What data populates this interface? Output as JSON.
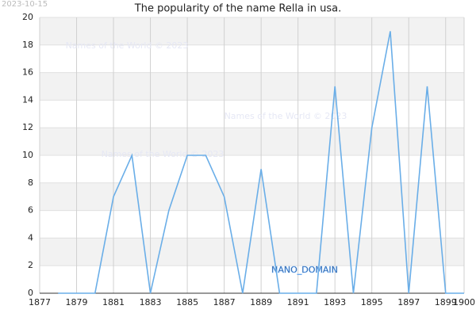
{
  "chart_data": {
    "type": "line",
    "title": "The popularity of the name Rella in usa.",
    "date": "2023-10-15",
    "annotations": [
      "Names of the World © 2023",
      "Names of the World © 2023",
      "Names of the World © 2023",
      "NANO_DOMAIN"
    ],
    "x": [
      1878,
      1879,
      1880,
      1881,
      1882,
      1883,
      1884,
      1885,
      1886,
      1887,
      1888,
      1889,
      1890,
      1891,
      1892,
      1893,
      1894,
      1895,
      1896,
      1897,
      1898,
      1899,
      1900
    ],
    "series": [
      {
        "name": "Rella",
        "color": "#6aaee8",
        "values": [
          0,
          0,
          0,
          7,
          10,
          0,
          6,
          10,
          10,
          7,
          0,
          9,
          0,
          0,
          0,
          15,
          0,
          12,
          19,
          0,
          15,
          0,
          0
        ]
      }
    ],
    "xlim": [
      1877,
      1900
    ],
    "xticks": [
      1877,
      1879,
      1881,
      1883,
      1885,
      1887,
      1889,
      1891,
      1893,
      1895,
      1897,
      1899,
      1900
    ],
    "ylim": [
      0,
      20
    ],
    "yticks": [
      0,
      2,
      4,
      6,
      8,
      10,
      12,
      14,
      16,
      18,
      20
    ],
    "grid": true,
    "legend": false
  }
}
